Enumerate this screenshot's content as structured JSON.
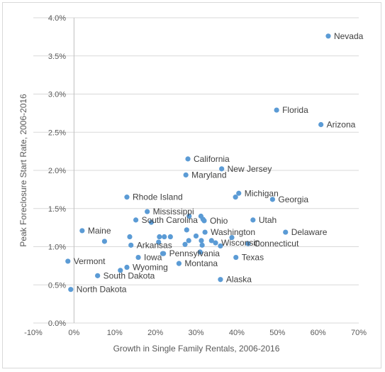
{
  "chart_data": {
    "type": "scatter",
    "title": "",
    "xlabel": "Growth in Single Family Rentals, 2006-2016",
    "ylabel": "Peak Foreclosure Start Rate, 2006-2016",
    "xlim": [
      -0.1,
      0.7
    ],
    "ylim": [
      0.0,
      0.04
    ],
    "x_ticks": [
      -0.1,
      0.0,
      0.1,
      0.2,
      0.3,
      0.4,
      0.5,
      0.6,
      0.7
    ],
    "x_tick_labels": [
      "-10%",
      "0%",
      "10%",
      "20%",
      "30%",
      "40%",
      "50%",
      "60%",
      "70%"
    ],
    "y_ticks": [
      0.0,
      0.005,
      0.01,
      0.015,
      0.02,
      0.025,
      0.03,
      0.035,
      0.04
    ],
    "y_tick_labels": [
      "0.0%",
      "0.5%",
      "1.0%",
      "1.5%",
      "2.0%",
      "2.5%",
      "3.0%",
      "3.5%",
      "4.0%"
    ],
    "grid": "horizontal",
    "marker_color": "#5b9bd5",
    "points": [
      {
        "x": 0.625,
        "y": 0.0376,
        "label": "Nevada"
      },
      {
        "x": 0.498,
        "y": 0.0279,
        "label": "Florida"
      },
      {
        "x": 0.607,
        "y": 0.026,
        "label": "Arizona"
      },
      {
        "x": 0.28,
        "y": 0.0215,
        "label": "California"
      },
      {
        "x": 0.363,
        "y": 0.0202,
        "label": "New Jersey"
      },
      {
        "x": 0.275,
        "y": 0.0194,
        "label": "Maryland"
      },
      {
        "x": 0.405,
        "y": 0.017,
        "label": "Michigan"
      },
      {
        "x": 0.488,
        "y": 0.0162,
        "label": "Georgia"
      },
      {
        "x": 0.13,
        "y": 0.0165,
        "label": "Rhode Island"
      },
      {
        "x": 0.18,
        "y": 0.0146,
        "label": "Mississippi"
      },
      {
        "x": 0.152,
        "y": 0.0135,
        "label": "South Carolina"
      },
      {
        "x": 0.32,
        "y": 0.0134,
        "label": "Ohio"
      },
      {
        "x": 0.44,
        "y": 0.0135,
        "label": "Utah"
      },
      {
        "x": 0.322,
        "y": 0.0119,
        "label": "Washington"
      },
      {
        "x": 0.52,
        "y": 0.0119,
        "label": "Delaware"
      },
      {
        "x": 0.02,
        "y": 0.0121,
        "label": "Maine"
      },
      {
        "x": 0.348,
        "y": 0.0105,
        "label": "Wisconsin"
      },
      {
        "x": 0.428,
        "y": 0.0104,
        "label": "Connecticut"
      },
      {
        "x": 0.14,
        "y": 0.0102,
        "label": "Arkansas"
      },
      {
        "x": 0.22,
        "y": 0.0091,
        "label": "Pennsylvania"
      },
      {
        "x": 0.158,
        "y": 0.0086,
        "label": "Iowa"
      },
      {
        "x": 0.398,
        "y": 0.0086,
        "label": "Texas"
      },
      {
        "x": -0.015,
        "y": 0.0081,
        "label": "Vermont"
      },
      {
        "x": 0.258,
        "y": 0.0078,
        "label": "Montana"
      },
      {
        "x": 0.13,
        "y": 0.0073,
        "label": "Wyoming"
      },
      {
        "x": 0.058,
        "y": 0.0062,
        "label": "South Dakota"
      },
      {
        "x": 0.36,
        "y": 0.0057,
        "label": "Alaska"
      },
      {
        "x": -0.008,
        "y": 0.0044,
        "label": "North Dakota"
      },
      {
        "x": 0.397,
        "y": 0.0165,
        "label": ""
      },
      {
        "x": 0.283,
        "y": 0.014,
        "label": ""
      },
      {
        "x": 0.312,
        "y": 0.014,
        "label": ""
      },
      {
        "x": 0.317,
        "y": 0.0136,
        "label": ""
      },
      {
        "x": 0.19,
        "y": 0.0132,
        "label": ""
      },
      {
        "x": 0.277,
        "y": 0.0122,
        "label": ""
      },
      {
        "x": 0.137,
        "y": 0.0113,
        "label": ""
      },
      {
        "x": 0.21,
        "y": 0.0113,
        "label": ""
      },
      {
        "x": 0.222,
        "y": 0.0113,
        "label": ""
      },
      {
        "x": 0.237,
        "y": 0.0113,
        "label": ""
      },
      {
        "x": 0.3,
        "y": 0.0114,
        "label": ""
      },
      {
        "x": 0.388,
        "y": 0.0112,
        "label": ""
      },
      {
        "x": 0.075,
        "y": 0.0107,
        "label": ""
      },
      {
        "x": 0.208,
        "y": 0.0106,
        "label": ""
      },
      {
        "x": 0.282,
        "y": 0.0108,
        "label": ""
      },
      {
        "x": 0.313,
        "y": 0.0108,
        "label": ""
      },
      {
        "x": 0.338,
        "y": 0.0108,
        "label": ""
      },
      {
        "x": 0.273,
        "y": 0.0103,
        "label": ""
      },
      {
        "x": 0.315,
        "y": 0.0102,
        "label": ""
      },
      {
        "x": 0.36,
        "y": 0.0101,
        "label": ""
      },
      {
        "x": 0.218,
        "y": 0.0091,
        "label": ""
      },
      {
        "x": 0.31,
        "y": 0.0093,
        "label": ""
      },
      {
        "x": 0.114,
        "y": 0.0069,
        "label": ""
      }
    ]
  }
}
